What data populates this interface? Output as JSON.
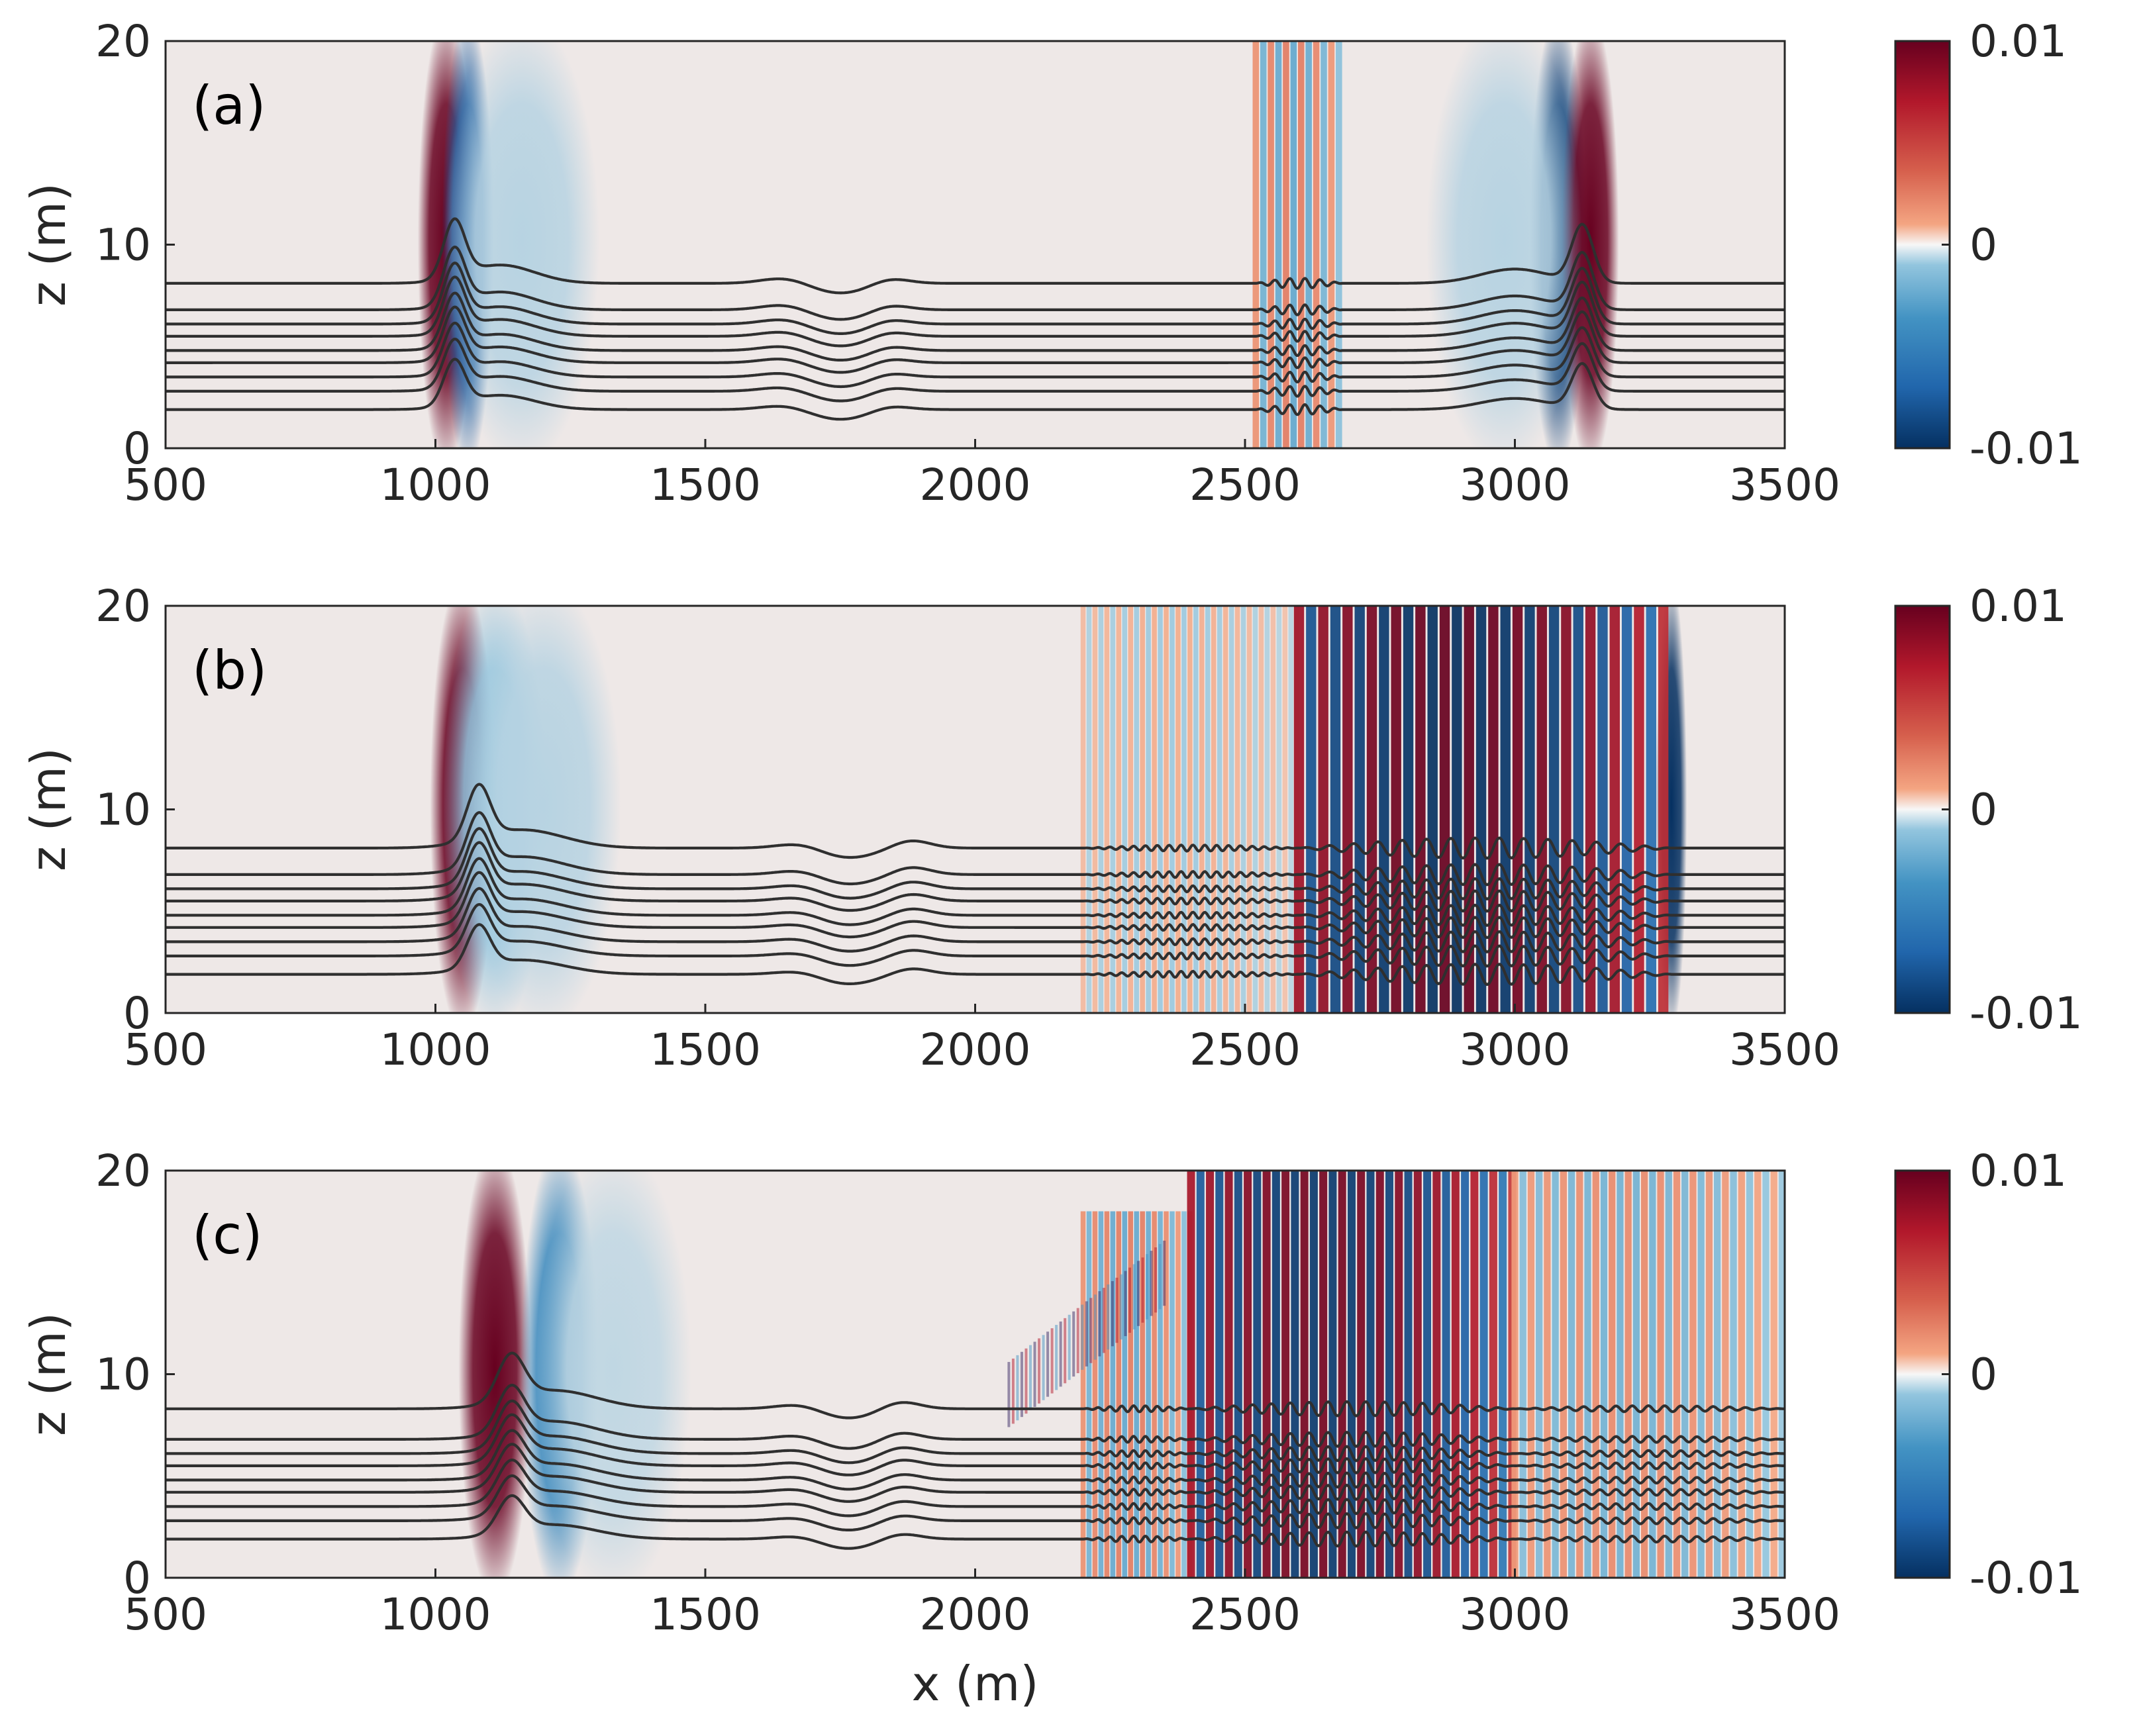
{
  "chart_data": [
    {
      "type": "heatmap",
      "panel_label": "(a)",
      "xlabel": "",
      "ylabel": "z (m)",
      "xlim": [
        500,
        3500
      ],
      "ylim": [
        0,
        20
      ],
      "x_ticks": [
        "500",
        "1000",
        "1500",
        "2000",
        "2500",
        "3000",
        "3500"
      ],
      "y_ticks": [
        "0",
        "10",
        "20"
      ],
      "colorbar": {
        "min": -0.01,
        "max": 0.01,
        "tick_labels": [
          "0.01",
          "0",
          "-0.01"
        ],
        "colormap": "blue-white-red"
      },
      "features": [
        {
          "kind": "solitary-wave",
          "x": 1020,
          "sign": 1,
          "amp": 1.0,
          "width": 22,
          "zmax": 20
        },
        {
          "kind": "solitary-wave",
          "x": 1060,
          "sign": -1,
          "amp": 0.75,
          "width": 20,
          "zmax": 20
        },
        {
          "kind": "solitary-wave",
          "x": 1160,
          "sign": -1,
          "amp": 0.12,
          "width": 60,
          "zmax": 20
        },
        {
          "kind": "solitary-wave",
          "x": 3080,
          "sign": -1,
          "amp": 0.9,
          "width": 22,
          "zmax": 20
        },
        {
          "kind": "solitary-wave",
          "x": 3140,
          "sign": 1,
          "amp": 1.0,
          "width": 22,
          "zmax": 20
        },
        {
          "kind": "solitary-wave",
          "x": 2980,
          "sign": -1,
          "amp": 0.12,
          "width": 60,
          "zmax": 20
        },
        {
          "kind": "wavetrain",
          "x0": 2520,
          "x1": 2680,
          "wavelength": 28,
          "amp": 0.35,
          "zmin": 0,
          "zmax": 20
        }
      ],
      "isopycnals": {
        "levels": [
          1.9,
          2.8,
          3.5,
          4.2,
          4.8,
          5.5,
          6.1,
          6.8,
          8.1
        ],
        "bumps": [
          {
            "x": 1035,
            "width": 28,
            "amp": 2.8
          },
          {
            "x": 1120,
            "width": 90,
            "amp": 0.9
          },
          {
            "x": 3125,
            "width": 28,
            "amp": 2.8
          },
          {
            "x": 3000,
            "width": 90,
            "amp": 0.7
          },
          {
            "x": 1650,
            "width": 60,
            "amp": 0.3
          },
          {
            "x": 1840,
            "width": 50,
            "amp": 0.3
          }
        ],
        "dips": [
          {
            "x": 1750,
            "width": 80,
            "amp": 0.5
          }
        ],
        "ripples": [
          {
            "x0": 2520,
            "x1": 2680,
            "wavelength": 28,
            "amp": 0.25
          }
        ]
      }
    },
    {
      "type": "heatmap",
      "panel_label": "(b)",
      "xlabel": "",
      "ylabel": "z (m)",
      "xlim": [
        500,
        3500
      ],
      "ylim": [
        0,
        20
      ],
      "x_ticks": [
        "500",
        "1000",
        "1500",
        "2000",
        "2500",
        "3000",
        "3500"
      ],
      "y_ticks": [
        "0",
        "10",
        "20"
      ],
      "colorbar": {
        "min": -0.01,
        "max": 0.01,
        "tick_labels": [
          "0.01",
          "0",
          "-0.01"
        ],
        "colormap": "blue-white-red"
      },
      "features": [
        {
          "kind": "solitary-wave",
          "x": 1050,
          "sign": 1,
          "amp": 1.0,
          "width": 25,
          "zmax": 20
        },
        {
          "kind": "solitary-wave",
          "x": 1110,
          "sign": -1,
          "amp": 0.2,
          "width": 40,
          "zmax": 20
        },
        {
          "kind": "solitary-wave",
          "x": 1200,
          "sign": -1,
          "amp": 0.12,
          "width": 60,
          "zmax": 20
        },
        {
          "kind": "solitary-wave",
          "x": 3290,
          "sign": -1,
          "amp": 1.0,
          "width": 12,
          "zmax": 20
        },
        {
          "kind": "wavetrain",
          "x0": 2200,
          "x1": 2600,
          "wavelength": 22,
          "amp": 0.18,
          "zmin": 0,
          "zmax": 20
        },
        {
          "kind": "wavetrain",
          "x0": 2600,
          "x1": 3290,
          "wavelength": 45,
          "amp": 1.0,
          "zmin": 0,
          "zmax": 20
        }
      ],
      "isopycnals": {
        "levels": [
          1.9,
          2.8,
          3.5,
          4.2,
          4.8,
          5.5,
          6.1,
          6.8,
          8.1
        ],
        "bumps": [
          {
            "x": 1080,
            "width": 30,
            "amp": 2.6
          },
          {
            "x": 1160,
            "width": 110,
            "amp": 0.9
          },
          {
            "x": 1680,
            "width": 60,
            "amp": 0.3
          },
          {
            "x": 1880,
            "width": 50,
            "amp": 0.4
          }
        ],
        "dips": [
          {
            "x": 1760,
            "width": 80,
            "amp": 0.5
          }
        ],
        "ripples": [
          {
            "x0": 2200,
            "x1": 2600,
            "wavelength": 22,
            "amp": 0.15
          },
          {
            "x0": 2600,
            "x1": 3290,
            "wavelength": 45,
            "amp": 0.5
          }
        ]
      }
    },
    {
      "type": "heatmap",
      "panel_label": "(c)",
      "xlabel": "x (m)",
      "ylabel": "z (m)",
      "xlim": [
        500,
        3500
      ],
      "ylim": [
        0,
        20
      ],
      "x_ticks": [
        "500",
        "1000",
        "1500",
        "2000",
        "2500",
        "3000",
        "3500"
      ],
      "y_ticks": [
        "0",
        "10",
        "20"
      ],
      "colorbar": {
        "min": -0.01,
        "max": 0.01,
        "tick_labels": [
          "0.01",
          "0",
          "-0.01"
        ],
        "colormap": "blue-white-red"
      },
      "features": [
        {
          "kind": "solitary-wave",
          "x": 1110,
          "sign": 1,
          "amp": 1.0,
          "width": 28,
          "zmax": 20
        },
        {
          "kind": "solitary-wave",
          "x": 1230,
          "sign": -1,
          "amp": 0.5,
          "width": 30,
          "zmax": 20
        },
        {
          "kind": "solitary-wave",
          "x": 1330,
          "sign": -1,
          "amp": 0.1,
          "width": 60,
          "zmax": 20
        },
        {
          "kind": "wavetrain",
          "x0": 2200,
          "x1": 2400,
          "wavelength": 22,
          "amp": 0.35,
          "zmin": 0,
          "zmax": 18
        },
        {
          "kind": "wavetrain",
          "x0": 2400,
          "x1": 3000,
          "wavelength": 35,
          "amp": 0.95,
          "zmin": 0,
          "zmax": 20
        },
        {
          "kind": "wavetrain",
          "x0": 3000,
          "x1": 3500,
          "wavelength": 30,
          "amp": 0.3,
          "zmin": 0,
          "zmax": 20
        },
        {
          "kind": "shear-band",
          "x0": 2060,
          "x1": 2350,
          "z0": 9,
          "z1": 15,
          "amp": 0.5
        }
      ],
      "isopycnals": {
        "levels": [
          1.9,
          2.8,
          3.5,
          4.2,
          4.8,
          5.5,
          6.1,
          6.8,
          8.3
        ],
        "bumps": [
          {
            "x": 1140,
            "width": 35,
            "amp": 2.2
          },
          {
            "x": 1220,
            "width": 110,
            "amp": 0.9
          },
          {
            "x": 1680,
            "width": 60,
            "amp": 0.3
          },
          {
            "x": 1860,
            "width": 50,
            "amp": 0.4
          }
        ],
        "dips": [
          {
            "x": 1760,
            "width": 80,
            "amp": 0.5
          }
        ],
        "ripples": [
          {
            "x0": 2200,
            "x1": 2400,
            "wavelength": 22,
            "amp": 0.15
          },
          {
            "x0": 2400,
            "x1": 3000,
            "wavelength": 35,
            "amp": 0.35
          },
          {
            "x0": 3000,
            "x1": 3500,
            "wavelength": 30,
            "amp": 0.15
          }
        ]
      }
    }
  ]
}
